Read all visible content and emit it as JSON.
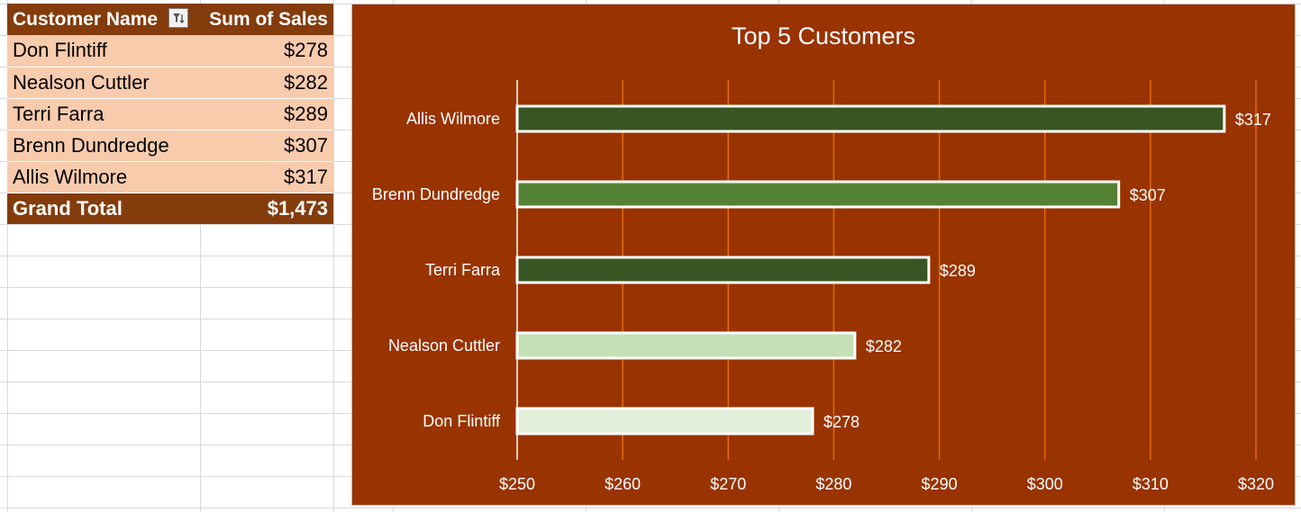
{
  "pivot": {
    "header": {
      "name": "Customer Name",
      "sales": "Sum of Sales"
    },
    "rows": [
      {
        "name": "Don Flintiff",
        "value": "$278"
      },
      {
        "name": "Nealson Cuttler",
        "value": "$282"
      },
      {
        "name": "Terri Farra",
        "value": "$289"
      },
      {
        "name": "Brenn Dundredge",
        "value": "$307"
      },
      {
        "name": "Allis Wilmore",
        "value": "$317"
      }
    ],
    "total": {
      "label": "Grand Total",
      "value": "$1,473"
    }
  },
  "colors": {
    "header_bg": "#843c0c",
    "row_bg": "#f8cbad",
    "chart_bg": "#993300",
    "gridline": "#e46c0a"
  },
  "chart_data": {
    "type": "bar",
    "orientation": "horizontal",
    "title": "Top 5 Customers",
    "categories": [
      "Allis Wilmore",
      "Brenn Dundredge",
      "Terri Farra",
      "Nealson Cuttler",
      "Don Flintiff"
    ],
    "values": [
      317,
      307,
      289,
      282,
      278
    ],
    "data_labels": [
      "$317",
      "$307",
      "$289",
      "$282",
      "$278"
    ],
    "bar_colors": [
      "#375623",
      "#548235",
      "#375623",
      "#c5e0b4",
      "#e2efda"
    ],
    "xlim": [
      250,
      320
    ],
    "xticks": [
      250,
      260,
      270,
      280,
      290,
      300,
      310,
      320
    ],
    "xtick_labels": [
      "$250",
      "$260",
      "$270",
      "$280",
      "$290",
      "$300",
      "$310",
      "$320"
    ],
    "grid": true,
    "legend": "none"
  }
}
